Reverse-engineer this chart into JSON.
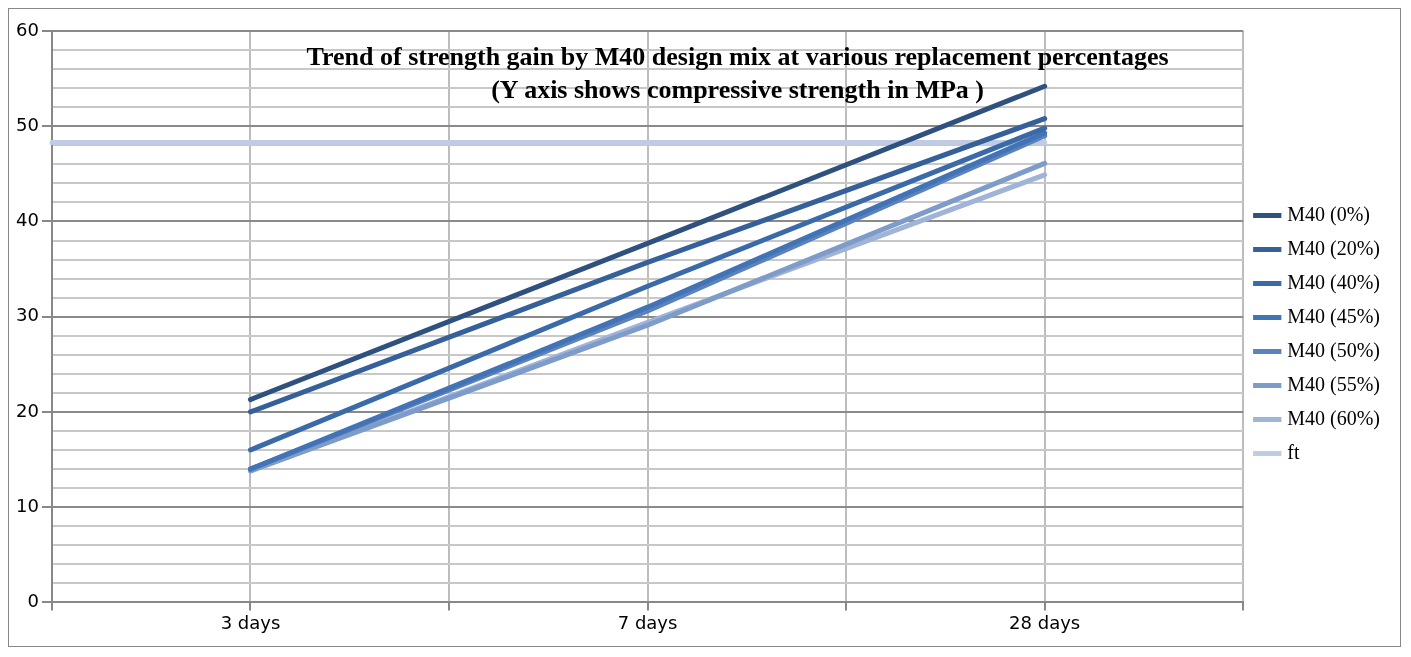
{
  "chart_data": {
    "type": "line",
    "title": "Trend of strength gain by M40 design mix at various replacement percentages",
    "subtitle": "(Y axis shows compressive strength in MPa )",
    "categories": [
      null,
      "3 days",
      null,
      "7 days",
      null,
      "28 days",
      null
    ],
    "series": [
      {
        "name": "M40 (0%)",
        "color": "#2f5180",
        "values": [
          null,
          21.3,
          null,
          37.7,
          null,
          54.2,
          null
        ]
      },
      {
        "name": "M40 (20%)",
        "color": "#35609a",
        "values": [
          null,
          20.0,
          null,
          35.7,
          null,
          50.8,
          null
        ]
      },
      {
        "name": "M40 (40%)",
        "color": "#3b6aa8",
        "values": [
          null,
          16.0,
          null,
          33.2,
          null,
          49.8,
          null
        ]
      },
      {
        "name": "M40 (45%)",
        "color": "#4273b5",
        "values": [
          null,
          14.0,
          null,
          31.0,
          null,
          49.3,
          null
        ]
      },
      {
        "name": "M40 (50%)",
        "color": "#5b82be",
        "values": [
          null,
          14.0,
          null,
          30.6,
          null,
          49.0,
          null
        ]
      },
      {
        "name": "M40 (55%)",
        "color": "#7e9cc9",
        "values": [
          null,
          13.8,
          null,
          29.1,
          null,
          46.1,
          null
        ]
      },
      {
        "name": "M40 (60%)",
        "color": "#a0b4d8",
        "values": [
          null,
          13.8,
          null,
          29.4,
          null,
          44.9,
          null
        ]
      },
      {
        "name": "ft",
        "color": "#c0cce3",
        "values": [
          48.3,
          48.3,
          48.3,
          48.3,
          48.3,
          48.3,
          null
        ]
      }
    ],
    "ylim": [
      0,
      60
    ],
    "yticks": [
      0,
      {
        "value": 2,
        "label": null
      },
      {
        "value": 4,
        "label": null
      },
      {
        "value": 6,
        "label": null
      },
      {
        "value": 8,
        "label": null
      },
      10,
      {
        "value": 12,
        "label": null
      },
      {
        "value": 14,
        "label": null
      },
      {
        "value": 16,
        "label": null
      },
      {
        "value": 18,
        "label": null
      },
      20,
      {
        "value": 22,
        "label": null
      },
      {
        "value": 24,
        "label": null
      },
      {
        "value": 26,
        "label": null
      },
      {
        "value": 28,
        "label": null
      },
      30,
      {
        "value": 32,
        "label": null
      },
      {
        "value": 34,
        "label": null
      },
      {
        "value": 36,
        "label": null
      },
      {
        "value": 38,
        "label": null
      },
      40,
      {
        "value": 42,
        "label": null
      },
      {
        "value": 44,
        "label": null
      },
      {
        "value": 46,
        "label": null
      },
      {
        "value": 48,
        "label": null
      },
      50,
      {
        "value": 52,
        "label": null
      },
      {
        "value": 54,
        "label": null
      },
      {
        "value": 56,
        "label": null
      },
      {
        "value": 58,
        "label": null
      },
      60
    ],
    "grid": true,
    "legend": "right",
    "marker": "none",
    "line_style": "solid"
  }
}
